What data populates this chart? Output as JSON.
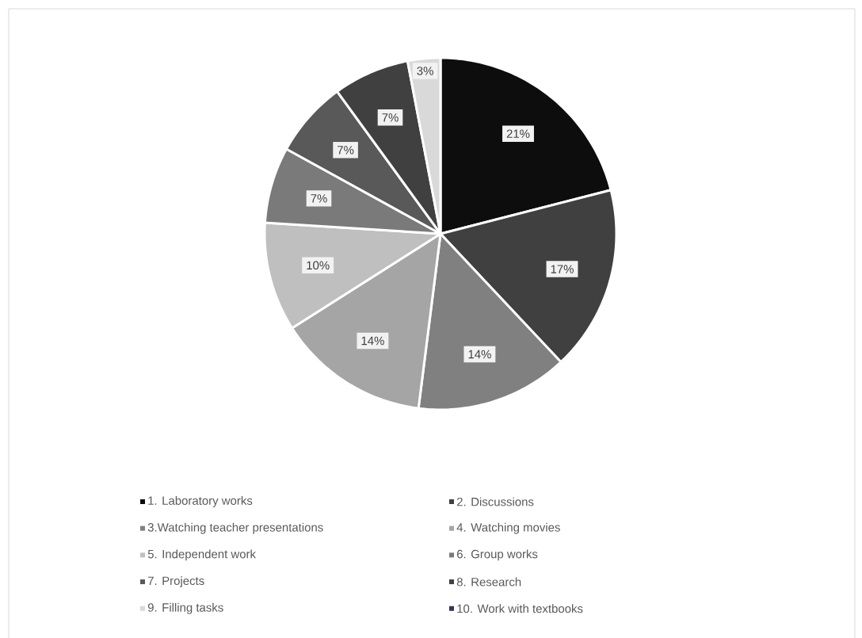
{
  "chart_data": {
    "type": "pie",
    "categories": [
      "1. Laboratory works",
      "2. Discussions",
      "3.Watching teacher presentations",
      "4. Watching movies",
      "5. Independent work",
      "6. Group works",
      "7. Projects",
      "8. Research",
      "9. Filling tasks",
      "10. Work with textbooks"
    ],
    "values": [
      21,
      17,
      14,
      14,
      10,
      7,
      7,
      7,
      3,
      0
    ],
    "value_labels": [
      "21%",
      "17%",
      "14%",
      "14%",
      "10%",
      "7%",
      "7%",
      "7%",
      "3%",
      null
    ],
    "colors": [
      "#0d0d0d",
      "#404040",
      "#808080",
      "#a5a5a5",
      "#bfbfbf",
      "#7a7a7a",
      "#595959",
      "#404040",
      "#d9d9d9",
      "#403152"
    ],
    "legend": "bottom"
  }
}
